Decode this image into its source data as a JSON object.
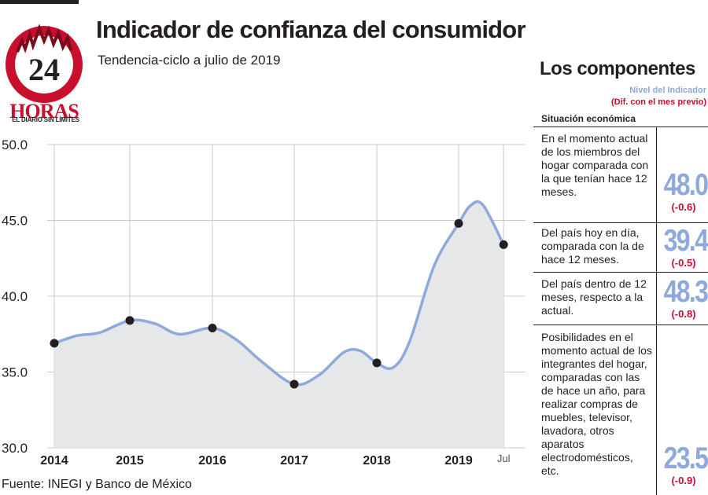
{
  "brand": {
    "name": "24 HORAS",
    "tagline": "EL DIARIO SIN LÍMITES",
    "logo_number": "24",
    "logo_word": "HORAS"
  },
  "header": {
    "title": "Indicador de confianza del consumidor",
    "subtitle": "Tendencia-ciclo a julio de 2019"
  },
  "source": "Fuente: INEGI y Banco de México",
  "chart_data": {
    "type": "area",
    "title": "Indicador de confianza del consumidor",
    "subtitle": "Tendencia-ciclo a julio de 2019",
    "xlabel": "",
    "ylabel": "",
    "ylim": [
      30.0,
      50.0
    ],
    "y_ticks": [
      "50.0",
      "45.0",
      "40.0",
      "35.0",
      "30.0"
    ],
    "x_ticks": [
      "2014",
      "2015",
      "2016",
      "2017",
      "2018",
      "2019",
      "Jul"
    ],
    "grid": true,
    "series": [
      {
        "x": [
          2014.0,
          2014.3,
          2014.6,
          2015.0,
          2015.3,
          2015.6,
          2016.0,
          2016.3,
          2016.6,
          2017.0,
          2017.3,
          2017.6,
          2017.8,
          2018.0,
          2018.2,
          2018.4,
          2018.7,
          2019.0,
          2019.15,
          2019.3,
          2019.55
        ],
        "y": [
          36.9,
          37.4,
          37.6,
          38.4,
          38.2,
          37.5,
          37.9,
          37.1,
          35.7,
          34.2,
          34.8,
          36.3,
          36.4,
          35.6,
          35.3,
          37.0,
          42.0,
          44.8,
          46.0,
          46.0,
          43.4
        ]
      }
    ],
    "markers": [
      {
        "x": 2014.0,
        "y": 36.9
      },
      {
        "x": 2015.0,
        "y": 38.4
      },
      {
        "x": 2016.0,
        "y": 37.9
      },
      {
        "x": 2017.0,
        "y": 34.2
      },
      {
        "x": 2018.0,
        "y": 35.6
      },
      {
        "x": 2019.0,
        "y": 44.8
      },
      {
        "x": 2019.55,
        "y": 43.4
      }
    ],
    "colors": {
      "line": "#8ea9db",
      "fill": "#e6e7e8",
      "marker": "#231f20",
      "grid": "#c8c8c8"
    }
  },
  "components": {
    "title": "Los componentes",
    "legend_level": "Nivel del Indicador",
    "legend_diff": "(Dif. con el mes previo)",
    "section": "Situación económica",
    "items": [
      {
        "text": "En el momento actual de los miembros del hogar comparada con la que tenían hace 12 meses.",
        "value": "48.0",
        "diff": "(-0.6)"
      },
      {
        "text": "Del país hoy en día, comparada con la de hace 12 meses.",
        "value": "39.4",
        "diff": "(-0.5)"
      },
      {
        "text": "Del país dentro de 12 meses, respecto a la actual.",
        "value": "48.3",
        "diff": "(-0.8)"
      },
      {
        "text": "Posibilidades en el momento actual de los integrantes del hogar, comparadas con las de hace un año, para realizar compras de muebles, televisor, lavadora, otros aparatos electrodomésticos, etc.",
        "value": "23.5",
        "diff": "(-0.9)"
      }
    ]
  }
}
